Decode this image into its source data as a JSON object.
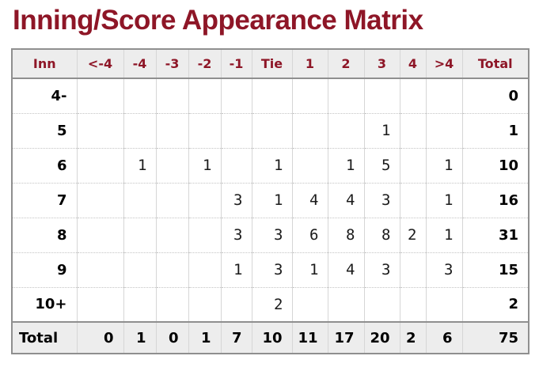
{
  "page_title": "Inning/Score Appearance Matrix",
  "colors": {
    "title_text": "#8e1627",
    "header_text": "#8e1627",
    "header_bg": "#ededed",
    "footer_bg": "#ededed",
    "outer_border": "#8f8f8f",
    "grid_line": "#d6d6d6",
    "dotted_line": "#c4c4c4",
    "body_text": "#000000"
  },
  "table": {
    "columns": [
      "Inn",
      "<-4",
      "-4",
      "-3",
      "-2",
      "-1",
      "Tie",
      "1",
      "2",
      "3",
      "4",
      ">4",
      "Total"
    ],
    "rows": [
      {
        "label": "4-",
        "cells": [
          "",
          "",
          "",
          "",
          "",
          "",
          "",
          "",
          "",
          "",
          ""
        ],
        "total": "0"
      },
      {
        "label": "5",
        "cells": [
          "",
          "",
          "",
          "",
          "",
          "",
          "",
          "",
          "1",
          "",
          ""
        ],
        "total": "1"
      },
      {
        "label": "6",
        "cells": [
          "",
          "1",
          "",
          "1",
          "",
          "1",
          "",
          "1",
          "5",
          "",
          "1"
        ],
        "total": "10"
      },
      {
        "label": "7",
        "cells": [
          "",
          "",
          "",
          "",
          "3",
          "1",
          "4",
          "4",
          "3",
          "",
          "1"
        ],
        "total": "16"
      },
      {
        "label": "8",
        "cells": [
          "",
          "",
          "",
          "",
          "3",
          "3",
          "6",
          "8",
          "8",
          "2",
          "1"
        ],
        "total": "31"
      },
      {
        "label": "9",
        "cells": [
          "",
          "",
          "",
          "",
          "1",
          "3",
          "1",
          "4",
          "3",
          "",
          "3"
        ],
        "total": "15"
      },
      {
        "label": "10+",
        "cells": [
          "",
          "",
          "",
          "",
          "",
          "2",
          "",
          "",
          "",
          "",
          ""
        ],
        "total": "2"
      }
    ],
    "footer": {
      "label": "Total",
      "cells": [
        "0",
        "1",
        "0",
        "1",
        "7",
        "10",
        "11",
        "17",
        "20",
        "2",
        "6"
      ],
      "total": "75"
    }
  }
}
